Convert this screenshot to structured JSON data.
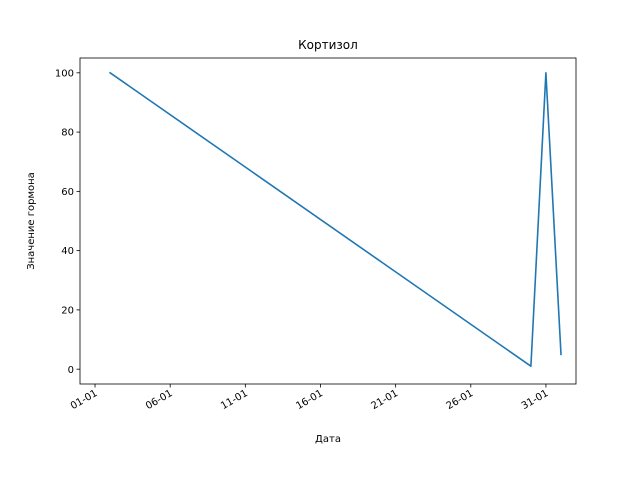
{
  "chart_data": {
    "type": "line",
    "title": "Кортизол",
    "xlabel": "Дата",
    "ylabel": "Значение гормона",
    "x_type": "date",
    "x_tick_labels": [
      "01-01",
      "06-01",
      "11-01",
      "16-01",
      "21-01",
      "26-01",
      "31-01"
    ],
    "x_ticks": [
      "2024-01-01",
      "2024-01-06",
      "2024-01-11",
      "2024-01-16",
      "2024-01-21",
      "2024-01-26",
      "2024-01-31"
    ],
    "xlim": [
      "2023-12-31T00:00",
      "2024-02-02T00:00"
    ],
    "ylim": [
      -5,
      105
    ],
    "y_ticks": [
      0,
      20,
      40,
      60,
      80,
      100
    ],
    "grid": false,
    "series": [
      {
        "color": "#1f77b4",
        "x": [
          "2024-01-02T00:00",
          "2024-01-30T00:00",
          "2024-01-31T00:00",
          "2024-02-01T00:00"
        ],
        "y": [
          100,
          1,
          100,
          5
        ]
      }
    ]
  }
}
